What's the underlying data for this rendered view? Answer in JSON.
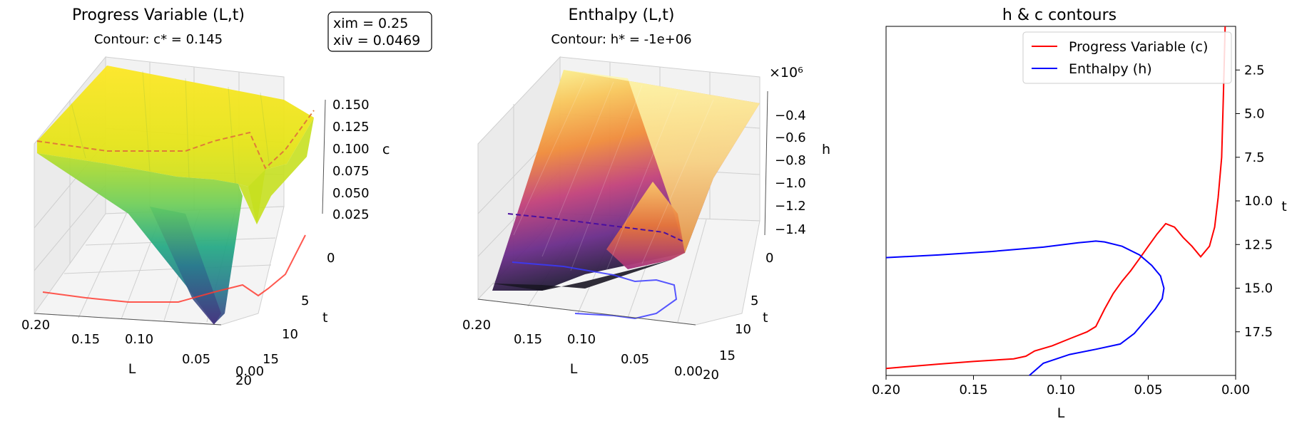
{
  "info_box": {
    "line1": "xim = 0.25",
    "line2": "xiv = 0.0469"
  },
  "colors": {
    "c_contour": "#ff0000",
    "h_contour": "#0000ff",
    "c_dashed": "#e07b39",
    "h_dashed": "#4b0fa0"
  },
  "chart_data": [
    {
      "type": "surface3d",
      "title": "Progress Variable (L,t)",
      "subtitle": "Contour: c* = 0.145",
      "colormap": "viridis",
      "xlabel": "L",
      "ylabel": "t",
      "zlabel": "c",
      "xlim": [
        0.2,
        0.0
      ],
      "ylim": [
        0,
        20
      ],
      "zlim": [
        0.0,
        0.16
      ],
      "x_ticks": [
        "0.20",
        "0.15",
        "0.10",
        "0.05",
        "0.00"
      ],
      "y_ticks": [
        "0",
        "5",
        "10",
        "15",
        "20"
      ],
      "z_ticks": [
        "0.025",
        "0.050",
        "0.075",
        "0.100",
        "0.125",
        "0.150"
      ],
      "contour_level": 0.145
    },
    {
      "type": "surface3d",
      "title": "Enthalpy (L,t)",
      "subtitle": "Contour: h* = -1e+06",
      "colormap": "inferno",
      "xlabel": "L",
      "ylabel": "t",
      "zlabel": "h",
      "z_multiplier": "×10⁶",
      "xlim": [
        0.2,
        0.0
      ],
      "ylim": [
        0,
        20
      ],
      "zlim": [
        -1.45,
        -0.25
      ],
      "x_ticks": [
        "0.20",
        "0.15",
        "0.10",
        "0.05",
        "0.00"
      ],
      "y_ticks": [
        "0",
        "5",
        "10",
        "15",
        "20"
      ],
      "z_ticks": [
        "−0.4",
        "−0.6",
        "−0.8",
        "−1.0",
        "−1.2",
        "−1.4"
      ],
      "contour_level": -1000000
    },
    {
      "type": "line",
      "title": "h & c contours",
      "xlabel": "L",
      "ylabel": "t",
      "xlim": [
        0.2,
        0.0
      ],
      "ylim": [
        20,
        0
      ],
      "x_ticks": [
        "0.20",
        "0.15",
        "0.10",
        "0.05",
        "0.00"
      ],
      "y_ticks": [
        "2.5",
        "5.0",
        "7.5",
        "10.0",
        "12.5",
        "15.0",
        "17.5"
      ],
      "legend_position": "top-right",
      "series": [
        {
          "name": "Progress Variable (c)",
          "color": "#ff0000",
          "x": [
            0.2,
            0.17,
            0.15,
            0.127,
            0.12,
            0.115,
            0.105,
            0.095,
            0.085,
            0.08,
            0.075,
            0.07,
            0.065,
            0.06,
            0.055,
            0.05,
            0.045,
            0.04,
            0.035,
            0.03,
            0.025,
            0.02,
            0.015,
            0.012,
            0.01,
            0.008,
            0.007,
            0.006
          ],
          "y": [
            19.6,
            19.35,
            19.2,
            19.05,
            18.9,
            18.6,
            18.3,
            17.9,
            17.5,
            17.2,
            16.2,
            15.3,
            14.6,
            14.0,
            13.3,
            12.6,
            11.9,
            11.3,
            11.5,
            12.1,
            12.6,
            13.2,
            12.6,
            11.5,
            9.8,
            7.5,
            4.0,
            0.0
          ]
        },
        {
          "name": "Enthalpy (h)",
          "color": "#0000ff",
          "x": [
            0.2,
            0.17,
            0.14,
            0.11,
            0.09,
            0.08,
            0.075,
            0.065,
            0.055,
            0.048,
            0.043,
            0.041,
            0.042,
            0.046,
            0.052,
            0.058,
            0.066,
            0.08,
            0.095,
            0.11,
            0.118
          ],
          "y": [
            13.25,
            13.1,
            12.9,
            12.65,
            12.4,
            12.3,
            12.35,
            12.6,
            13.1,
            13.7,
            14.3,
            15.0,
            15.6,
            16.2,
            16.9,
            17.6,
            18.2,
            18.5,
            18.8,
            19.3,
            20.0
          ]
        }
      ]
    }
  ]
}
